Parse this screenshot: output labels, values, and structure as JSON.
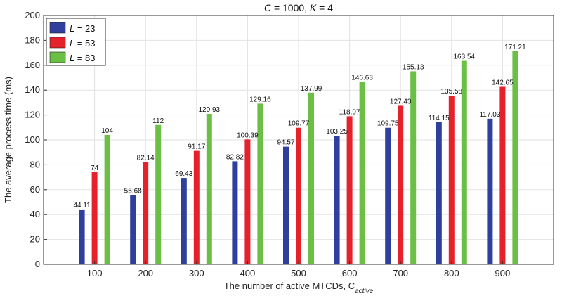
{
  "chart_data": {
    "type": "bar",
    "title": "C = 1000, K = 4",
    "title_parts": [
      "C",
      " = 1000, ",
      "K",
      " = 4"
    ],
    "xlabel": "The number of active MTCDs, C",
    "xlabel_subscript": "active",
    "ylabel": "The average process time (ms)",
    "categories": [
      "100",
      "200",
      "300",
      "400",
      "500",
      "600",
      "700",
      "800",
      "900"
    ],
    "ylim": [
      0,
      200
    ],
    "yticks": [
      "0",
      "20",
      "40",
      "60",
      "80",
      "100",
      "120",
      "140",
      "160",
      "180",
      "200"
    ],
    "grid": true,
    "legend_position": "top-left",
    "series": [
      {
        "name": "L = 23",
        "name_parts": [
          "L",
          " = 23"
        ],
        "color": "#2e3f9e",
        "values": [
          44.11,
          55.68,
          69.43,
          82.82,
          94.57,
          103.25,
          109.75,
          114.15,
          117.03
        ],
        "labels": [
          "44.11",
          "55.68",
          "69.43",
          "82.82",
          "94.57",
          "103.25",
          "109.75",
          "114.15",
          "117.03"
        ]
      },
      {
        "name": "L = 53",
        "name_parts": [
          "L",
          " = 53"
        ],
        "color": "#e5212b",
        "values": [
          74,
          82.14,
          91.17,
          100.39,
          109.77,
          118.97,
          127.43,
          135.58,
          142.65
        ],
        "labels": [
          "74",
          "82.14",
          "91.17",
          "100.39",
          "109.77",
          "118.97",
          "127.43",
          "135.58",
          "142.65"
        ]
      },
      {
        "name": "L = 83",
        "name_parts": [
          "L",
          " = 83"
        ],
        "color": "#6cbf45",
        "values": [
          104,
          112,
          120.93,
          129.16,
          137.99,
          146.63,
          155.13,
          163.54,
          171.21
        ],
        "labels": [
          "104",
          "112",
          "120.93",
          "129.16",
          "137.99",
          "146.63",
          "155.13",
          "163.54",
          "171.21"
        ]
      }
    ]
  }
}
